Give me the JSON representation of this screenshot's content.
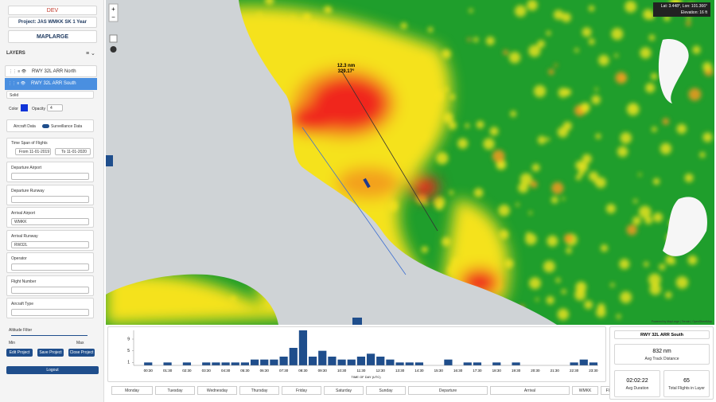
{
  "sidebar": {
    "env": "DEV",
    "project": "Project: JAS WMKK SK 1 Year",
    "logo": "MAPLARGE",
    "layers_title": "LAYERS",
    "layers": [
      "RWY 32L ARR North",
      "RWY 32L ARR South"
    ],
    "style": "Solid",
    "color_label": "Color",
    "opacity_label": "Opacity",
    "opacity": "4",
    "toggle_left": "Aircraft Data",
    "toggle_right": "Surveillance Data",
    "time_span": "Time Span of Flights",
    "from": "From 11-01-2019",
    "to": "To 11-01-2020",
    "filters": [
      {
        "label": "Departure Airport"
      },
      {
        "label": "Departure Runway"
      },
      {
        "label": "Arrival Airport",
        "value": "WMKK"
      },
      {
        "label": "Arrival Runway",
        "value": "RW32L"
      },
      {
        "label": "Operator"
      },
      {
        "label": "Flight Number"
      },
      {
        "label": "Aircraft Type"
      }
    ],
    "altitude": "Altitude Filter",
    "min": "Min",
    "max": "Max",
    "buttons": [
      "Edit Project",
      "Save Project",
      "Close Project"
    ],
    "logout": "Logout"
  },
  "map": {
    "coords": "Lat: 3.448°, Lon: 101.366°",
    "elevation": "Elevation: 16 ft",
    "measure_distance": "12.3 nm",
    "measure_bearing": "329.17°",
    "attribution": "Powered by MapLarge | Terrain | OpenStreetMap"
  },
  "chart_data": {
    "type": "bar",
    "x_label": "TIME OF DAY (UTC)",
    "color": "#1f4e8c",
    "categories": [
      null,
      "00:30",
      null,
      "01:30",
      null,
      "02:30",
      null,
      "03:30",
      null,
      "04:30",
      null,
      "05:30",
      null,
      "06:30",
      null,
      "07:30",
      null,
      "08:30",
      null,
      "09:30",
      null,
      "10:30",
      null,
      "11:30",
      null,
      "12:30",
      null,
      "13:30",
      null,
      "14:30",
      null,
      "15:30",
      null,
      "16:30",
      null,
      "17:30",
      null,
      "18:30",
      null,
      "19:30",
      null,
      "20:30",
      null,
      "21:30",
      null,
      "22:30",
      null,
      "23:30"
    ],
    "values": [
      0,
      1,
      0,
      1,
      0,
      1,
      0,
      1,
      1,
      1,
      1,
      1,
      2,
      2,
      2,
      3,
      6,
      12,
      3,
      5,
      3,
      2,
      2,
      3,
      4,
      3,
      2,
      1,
      1,
      1,
      0,
      0,
      2,
      0,
      1,
      1,
      0,
      1,
      0,
      1,
      0,
      0,
      0,
      0,
      0,
      1,
      2,
      1
    ],
    "ylim": [
      0,
      12
    ],
    "yticks": [
      1,
      5,
      9
    ]
  },
  "filters_bar": [
    "Monday",
    "Tuesday",
    "Wednesday",
    "Thursday",
    "Friday",
    "Saturday",
    "Sunday",
    "Departure",
    "Arrival",
    "WMKK",
    "Flight Distribution"
  ],
  "stats": {
    "title": "RWY 32L ARR South",
    "distance": "832 nm",
    "distance_label": "Avg Track Distance",
    "duration": "02:02:22",
    "duration_label": "Avg Duration",
    "flights": "65",
    "flights_label": "Total Flights in Layer"
  }
}
